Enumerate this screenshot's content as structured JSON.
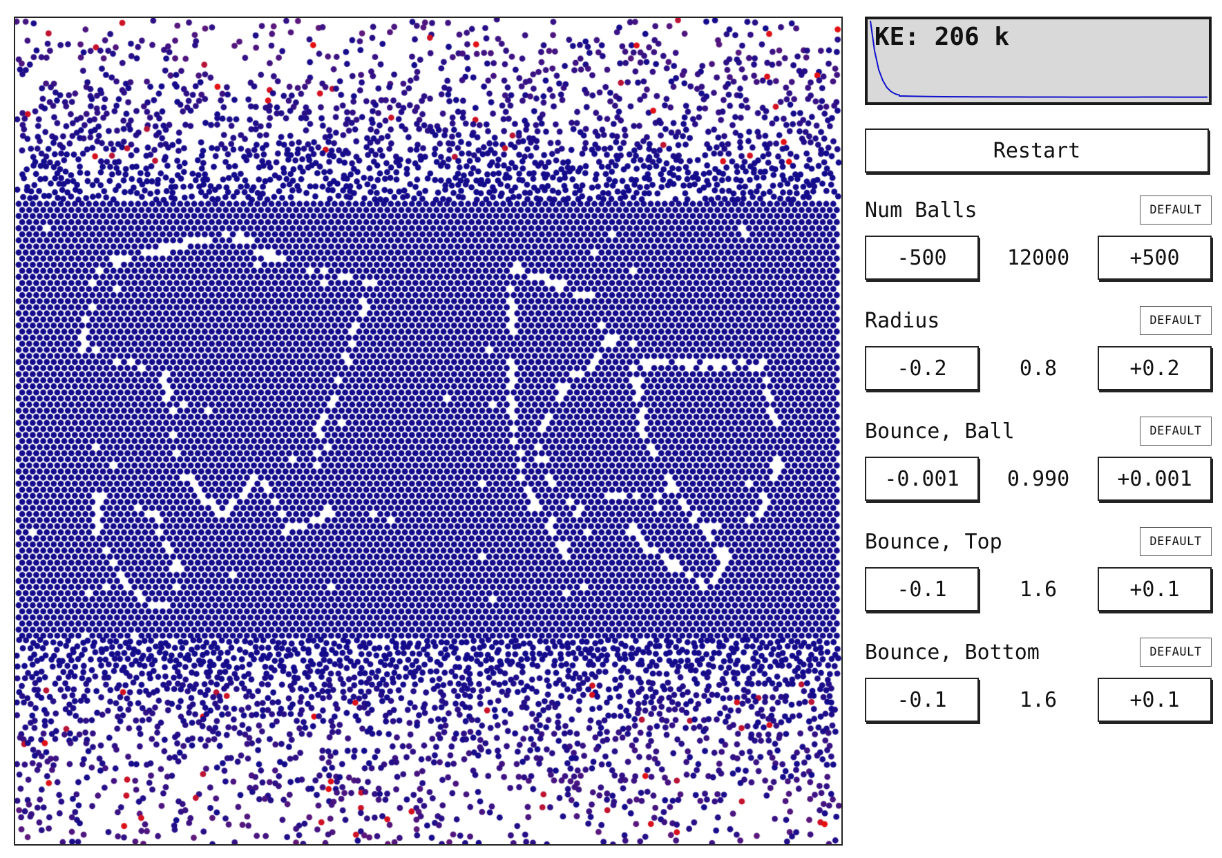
{
  "simulation": {
    "ball_colors": {
      "cool": "#120b8c",
      "cool_alt": "#2b1090",
      "warm": "#6a1a78",
      "hot": "#e81010"
    },
    "background": "#ffffff"
  },
  "kinetic_energy": {
    "label": "KE: 206 k",
    "history_fraction": [
      1.0,
      0.62,
      0.38,
      0.24,
      0.15,
      0.1,
      0.07,
      0.055,
      0.045,
      0.04,
      0.037,
      0.035,
      0.034,
      0.033,
      0.033,
      0.032,
      0.032,
      0.031,
      0.031,
      0.031,
      0.03,
      0.03,
      0.03,
      0.03,
      0.03,
      0.031,
      0.031,
      0.03,
      0.03,
      0.03
    ],
    "line_color": "#1010cc",
    "background_color": "#d9d9d9"
  },
  "restart_label": "Restart",
  "default_label": "DEFAULT",
  "controls": [
    {
      "id": "num-balls",
      "name": "Num Balls",
      "minus": "-500",
      "value": "12000",
      "plus": "+500"
    },
    {
      "id": "radius",
      "name": "Radius",
      "minus": "-0.2",
      "value": "0.8",
      "plus": "+0.2"
    },
    {
      "id": "bounce-ball",
      "name": "Bounce, Ball",
      "minus": "-0.001",
      "value": "0.990",
      "plus": "+0.001"
    },
    {
      "id": "bounce-top",
      "name": "Bounce, Top",
      "minus": "-0.1",
      "value": "1.6",
      "plus": "+0.1"
    },
    {
      "id": "bounce-bottom",
      "name": "Bounce, Bottom",
      "minus": "-0.1",
      "value": "1.6",
      "plus": "+0.1"
    }
  ]
}
